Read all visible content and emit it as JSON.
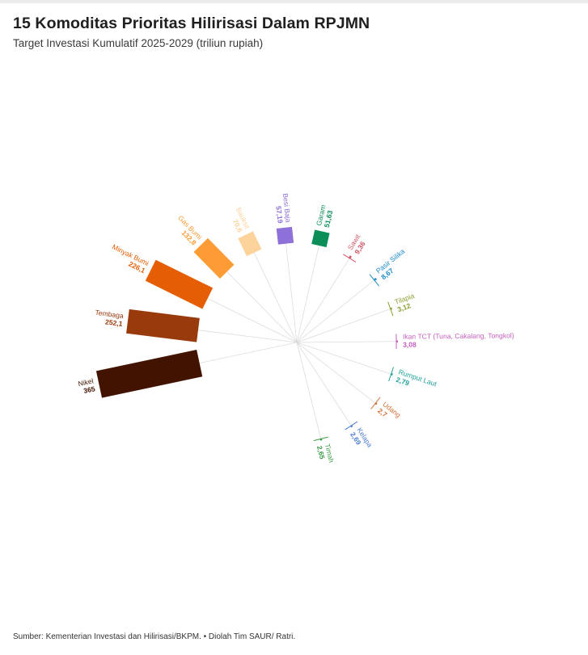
{
  "header": {
    "title": "15 Komoditas Prioritas Hilirisasi Dalam RPJMN",
    "subtitle": "Target Investasi Kumulatif 2025-2029 (triliun rupiah)"
  },
  "footer": {
    "source": "Sumber: Kementerian Investasi dan Hilirisasi/BKPM. • Diolah Tim SAUR/ Ratri."
  },
  "chart_data": {
    "type": "radial-bar",
    "categories": [
      "Nikel",
      "Tembaga",
      "Minyak Bumi",
      "Gas Bumi",
      "Bauksit",
      "Besi Baja",
      "Garam",
      "Sawit",
      "Pasir Silika",
      "Tilapia",
      "Ikan TCT (Tuna, Cakalang, Tongkol)",
      "Rumput Laut",
      "Udang",
      "Kelapa",
      "Timah"
    ],
    "value_labels": [
      "365",
      "252,1",
      "226,1",
      "132,8",
      "70,6",
      "57,19",
      "51,63",
      "9,36",
      "8,67",
      "3,12",
      "3,08",
      "2,79",
      "2,7",
      "2,69",
      "2,65"
    ],
    "values": [
      365,
      252.1,
      226.1,
      132.8,
      70.6,
      57.19,
      51.63,
      9.36,
      8.67,
      3.12,
      3.08,
      2.79,
      2.7,
      2.69,
      2.65
    ],
    "colors": [
      "#421400",
      "#983a0b",
      "#e55e03",
      "#fd9b35",
      "#fdd39c",
      "#8d71d8",
      "#0c8e59",
      "#d05665",
      "#1d8ccc",
      "#8e9d2e",
      "#c561c0",
      "#21a39b",
      "#d2743a",
      "#4f7fd2",
      "#3d9c4a"
    ],
    "label_colors": [
      "#421400",
      "#983a0b",
      "#e55e03",
      "#fd9b35",
      "#fdd39c",
      "#8d71d8",
      "#0c8e59",
      "#d05665",
      "#1d8ccc",
      "#8e9d2e",
      "#c561c0",
      "#21a39b",
      "#d2743a",
      "#4f7fd2",
      "#3d9c4a"
    ],
    "grid": true,
    "legend": "none"
  }
}
